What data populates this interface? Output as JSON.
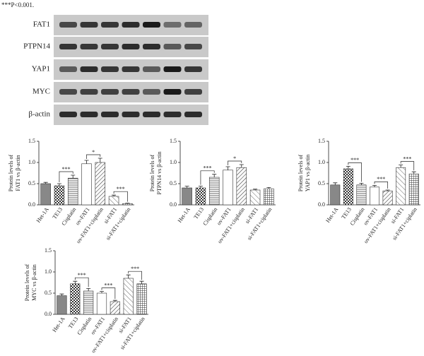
{
  "header": {
    "note": "***P<0.001."
  },
  "blot": {
    "labels": [
      "FAT1",
      "PTPN14",
      "YAP1",
      "MYC",
      "β-actin"
    ]
  },
  "chart_data": [
    {
      "type": "bar",
      "ylabel": [
        "Protein levels of",
        "FAT1 vs β-actin"
      ],
      "categories": [
        "Het-1A",
        "TE13",
        "Cisplatin",
        "ov-FAT1",
        "ov-FAT1+cisplatin",
        "si-FAT1",
        "si-FAT1+ciplatin"
      ],
      "values": [
        0.5,
        0.45,
        0.63,
        0.97,
        1.0,
        0.2,
        0.03
      ],
      "errors": [
        0.03,
        0.05,
        0.07,
        0.08,
        0.1,
        0.03,
        0.01
      ],
      "ylim": [
        0,
        1.5
      ],
      "yticks": [
        {
          "value": 0,
          "label": "0.0"
        },
        0.5,
        {
          "value": 1,
          "label": "1.0"
        },
        1.5
      ],
      "annotations": [
        "***",
        "*",
        "***"
      ]
    },
    {
      "type": "bar",
      "ylabel": [
        "Protein levels of",
        "PTPN14 vs β-actin"
      ],
      "categories": [
        "Het-1A",
        "TE13",
        "Cisplatin",
        "ov-FAT1",
        "ov-FAT1+cisplatin",
        "si-FAT1",
        "si-FAT1+ciplatin"
      ],
      "values": [
        0.4,
        0.4,
        0.65,
        0.82,
        0.88,
        0.35,
        0.38
      ],
      "errors": [
        0.04,
        0.04,
        0.07,
        0.08,
        0.07,
        0.02,
        0.03
      ],
      "ylim": [
        0,
        1.5
      ],
      "yticks": [
        {
          "value": 0,
          "label": "0.0"
        },
        0.5,
        {
          "value": 1,
          "label": "1.0"
        },
        1.5
      ],
      "annotations": [
        "***",
        "*"
      ]
    },
    {
      "type": "bar",
      "ylabel": [
        "Protein levels of",
        "YAP1 vs β-actin"
      ],
      "categories": [
        "Het-1A",
        "TE13",
        "Cisplatin",
        "ov-FAT1",
        "ov-FAT1+cisplatin",
        "si-FAT1",
        "si-FAT1+ciplatin"
      ],
      "values": [
        0.47,
        0.85,
        0.47,
        0.42,
        0.33,
        0.88,
        0.73
      ],
      "errors": [
        0.05,
        0.06,
        0.04,
        0.04,
        0.02,
        0.06,
        0.05
      ],
      "ylim": [
        0,
        1.5
      ],
      "yticks": [
        {
          "value": 0,
          "label": "0.0"
        },
        0.5,
        {
          "value": 1,
          "label": "1.0"
        },
        1.5
      ],
      "annotations": [
        "***",
        "***",
        "***"
      ]
    },
    {
      "type": "bar",
      "ylabel": [
        "Protein levels of",
        "MYC vs β-actin"
      ],
      "categories": [
        "Het-1A",
        "TE13",
        "Cisplatin",
        "ov-FAT1",
        "ov-FAT1+cisplatin",
        "si-FAT1",
        "si-FAT1+ciplatin"
      ],
      "values": [
        0.44,
        0.72,
        0.55,
        0.5,
        0.3,
        0.85,
        0.72
      ],
      "errors": [
        0.04,
        0.06,
        0.06,
        0.04,
        0.03,
        0.08,
        0.06
      ],
      "ylim": [
        0,
        1.5
      ],
      "yticks": [
        {
          "value": 0,
          "label": "0.0"
        },
        0.5,
        {
          "value": 1,
          "label": "1.0"
        },
        1.5
      ],
      "annotations": [
        "***",
        "***",
        "***"
      ]
    }
  ]
}
